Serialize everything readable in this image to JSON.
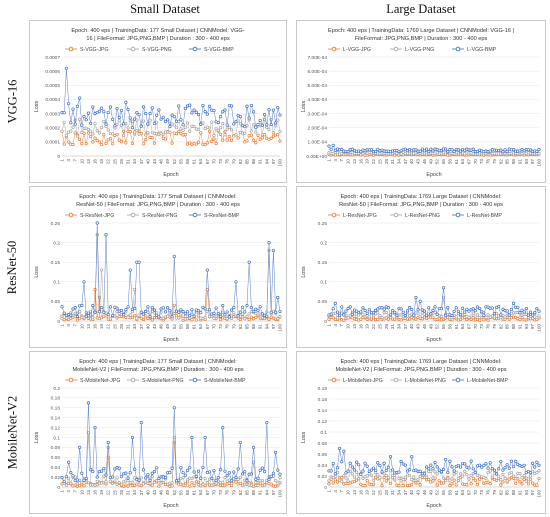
{
  "columns": [
    "Small Dataset",
    "Large Dataset"
  ],
  "rows": [
    "VGG-16",
    "ResNet-50",
    "MobileNet-V2"
  ],
  "colors": {
    "jpg": "#ed7d31",
    "png": "#a5a5a5",
    "bmp": "#4472c4"
  },
  "chart_data": [
    {
      "type": "line",
      "title_lines": [
        "Epoch: 400 eps | TrainingData: 177 Small Dataset | CNNModel: VGG-",
        "16 | FileFormat: JPG,PNG,BMP | Duration : 300 - 400 eps"
      ],
      "xlabel": "Epoch",
      "ylabel": "Loss",
      "ylim": [
        0,
        0.0007
      ],
      "yticks": [
        "0",
        "0.0001",
        "0.0002",
        "0.0003",
        "0.0004",
        "0.0005",
        "0.0006",
        "0.0007"
      ],
      "xticks": [
        "1",
        "4",
        "7",
        "10",
        "13",
        "16",
        "19",
        "22",
        "25",
        "28",
        "31",
        "34",
        "37",
        "40",
        "43",
        "46",
        "49",
        "52",
        "55",
        "58",
        "61",
        "64",
        "67",
        "70",
        "73",
        "76",
        "79",
        "82",
        "85",
        "88",
        "91",
        "94",
        "97",
        "100"
      ],
      "series": [
        {
          "name": "S-VGG-JPG",
          "key": "jpg",
          "base": 0.00013,
          "amp": 5e-05,
          "spikes": []
        },
        {
          "name": "S-VGG-PNG",
          "key": "png",
          "base": 0.0002,
          "amp": 6e-05,
          "spikes": []
        },
        {
          "name": "S-VGG-BMP",
          "key": "bmp",
          "base": 0.00028,
          "amp": 8e-05,
          "spikes": [
            [
              3,
              0.00062
            ],
            [
              4,
              0.00037
            ],
            [
              9,
              0.00041
            ],
            [
              30,
              0.00038
            ]
          ]
        }
      ]
    },
    {
      "type": "line",
      "title_lines": [
        "Epoch: 400 eps | TrainingData: 1769 Large Dataset | CNNModel: VGG-16 |",
        "FileFormat: JPG,PNG,BMP | Duration : 300 - 400 eps"
      ],
      "xlabel": "Epoch",
      "ylabel": "Loss",
      "ylim": [
        0,
        0.0007
      ],
      "yticks": [
        "0.00E+00",
        "1.00E-04",
        "2.00E-04",
        "3.00E-04",
        "4.00E-04",
        "5.00E-04",
        "6.00E-04",
        "7.00E-04"
      ],
      "xticks": [
        "1",
        "4",
        "7",
        "10",
        "13",
        "16",
        "19",
        "22",
        "25",
        "28",
        "31",
        "34",
        "37",
        "40",
        "43",
        "46",
        "49",
        "52",
        "55",
        "58",
        "61",
        "64",
        "67",
        "70",
        "73",
        "76",
        "79",
        "82",
        "85",
        "88",
        "91",
        "94",
        "97",
        "100"
      ],
      "series": [
        {
          "name": "L-VGG-JPG",
          "key": "jpg",
          "base": 1e-05,
          "amp": 4e-06,
          "spikes": []
        },
        {
          "name": "L-VGG-PNG",
          "key": "png",
          "base": 2e-05,
          "amp": 6e-06,
          "spikes": []
        },
        {
          "name": "L-VGG-BMP",
          "key": "bmp",
          "base": 4e-05,
          "amp": 1e-05,
          "spikes": [
            [
              1,
              7e-05
            ],
            [
              3,
              7.5e-05
            ]
          ]
        }
      ]
    },
    {
      "type": "line",
      "title_lines": [
        "Epoch: 400 eps | TrainingData: 177 Small Dataset | CNNModel:",
        "ResNet-50 | FileFormat: JPG,PNG,BMP | Duration : 300 - 400 eps"
      ],
      "xlabel": "Epoch",
      "ylabel": "Loss",
      "ylim": [
        0,
        0.25
      ],
      "yticks": [
        "0",
        "0.05",
        "0.1",
        "0.15",
        "0.2",
        "0.25"
      ],
      "xticks": [
        "1",
        "4",
        "7",
        "10",
        "13",
        "16",
        "19",
        "22",
        "25",
        "28",
        "31",
        "34",
        "37",
        "40",
        "43",
        "46",
        "49",
        "52",
        "55",
        "58",
        "61",
        "64",
        "67",
        "70",
        "73",
        "76",
        "79",
        "82",
        "85",
        "88",
        "91",
        "94",
        "97",
        "100"
      ],
      "series": [
        {
          "name": "S-ResNet-JPG",
          "key": "jpg",
          "base": 0.008,
          "amp": 0.006,
          "spikes": [
            [
              16,
              0.08
            ],
            [
              18,
              0.06
            ],
            [
              52,
              0.04
            ],
            [
              67,
              0.08
            ]
          ]
        },
        {
          "name": "S-ResNet-PNG",
          "key": "png",
          "base": 0.015,
          "amp": 0.01,
          "spikes": [
            [
              17,
              0.22
            ],
            [
              19,
              0.13
            ],
            [
              34,
              0.08
            ],
            [
              95,
              0.18
            ]
          ]
        },
        {
          "name": "S-ResNet-BMP",
          "key": "bmp",
          "base": 0.025,
          "amp": 0.015,
          "spikes": [
            [
              11,
              0.1
            ],
            [
              17,
              0.26
            ],
            [
              21,
              0.22
            ],
            [
              32,
              0.13
            ],
            [
              35,
              0.15
            ],
            [
              36,
              0.15
            ],
            [
              52,
              0.165
            ],
            [
              67,
              0.13
            ],
            [
              80,
              0.1
            ],
            [
              86,
              0.15
            ],
            [
              95,
              0.2
            ],
            [
              97,
              0.18
            ],
            [
              99,
              0.06
            ]
          ]
        }
      ]
    },
    {
      "type": "line",
      "title_lines": [
        "Epoch: 400 eps | TrainingData: 1769 Large Dataset | CNNModel:",
        "ResNet-50 | FileFormat: JPG,PNG,BMP | Duration : 300 - 400 eps"
      ],
      "xlabel": "Epoch",
      "ylabel": "Loss",
      "ylim": [
        0,
        0.25
      ],
      "yticks": [
        "0",
        "0.05",
        "0.1",
        "0.15",
        "0.2",
        "0.25"
      ],
      "xticks": [
        "1",
        "4",
        "7",
        "10",
        "13",
        "16",
        "19",
        "22",
        "25",
        "28",
        "31",
        "34",
        "37",
        "40",
        "43",
        "46",
        "49",
        "52",
        "55",
        "58",
        "61",
        "64",
        "67",
        "70",
        "73",
        "76",
        "79",
        "82",
        "85",
        "88",
        "91",
        "94",
        "97",
        "100"
      ],
      "series": [
        {
          "name": "L-ResNet-JPG",
          "key": "jpg",
          "base": 0.006,
          "amp": 0.004,
          "spikes": []
        },
        {
          "name": "L-ResNet-PNG",
          "key": "png",
          "base": 0.015,
          "amp": 0.007,
          "spikes": [
            [
              55,
              0.06
            ]
          ]
        },
        {
          "name": "L-ResNet-BMP",
          "key": "bmp",
          "base": 0.025,
          "amp": 0.012,
          "spikes": [
            [
              4,
              0.045
            ],
            [
              42,
              0.06
            ],
            [
              44,
              0.05
            ],
            [
              55,
              0.085
            ],
            [
              88,
              0.045
            ]
          ]
        }
      ]
    },
    {
      "type": "line",
      "title_lines": [
        "Epoch: 400 eps | TrainingData: 177 Small Dataset | CNNModel:",
        "MobileNet-V2 | FileFormat: JPG,PNG,BMP | Duration : 300 - 400 eps"
      ],
      "xlabel": "Epoch",
      "ylabel": "Loss",
      "ylim": [
        0,
        0.2
      ],
      "yticks": [
        "0",
        "0.02",
        "0.04",
        "0.06",
        "0.08",
        "0.1",
        "0.12",
        "0.14",
        "0.16",
        "0.18",
        "0.2"
      ],
      "xticks": [
        "1",
        "4",
        "7",
        "10",
        "13",
        "16",
        "19",
        "22",
        "25",
        "28",
        "31",
        "34",
        "37",
        "40",
        "43",
        "46",
        "49",
        "52",
        "55",
        "58",
        "61",
        "64",
        "67",
        "70",
        "73",
        "76",
        "79",
        "82",
        "85",
        "88",
        "91",
        "94",
        "97",
        "100"
      ],
      "series": [
        {
          "name": "S-MobileNet-JPG",
          "key": "jpg",
          "base": 0.006,
          "amp": 0.005,
          "spikes": [
            [
              22,
              0.06
            ],
            [
              52,
              0.09
            ]
          ]
        },
        {
          "name": "S-MobileNet-PNG",
          "key": "png",
          "base": 0.012,
          "amp": 0.01,
          "spikes": [
            [
              13,
              0.11
            ],
            [
              22,
              0.08
            ],
            [
              52,
              0.1
            ],
            [
              88,
              0.05
            ]
          ]
        },
        {
          "name": "S-MobileNet-BMP",
          "key": "bmp",
          "base": 0.025,
          "amp": 0.015,
          "spikes": [
            [
              4,
              0.05
            ],
            [
              9,
              0.08
            ],
            [
              13,
              0.17
            ],
            [
              16,
              0.12
            ],
            [
              22,
              0.09
            ],
            [
              33,
              0.1
            ],
            [
              37,
              0.13
            ],
            [
              52,
              0.16
            ],
            [
              60,
              0.1
            ],
            [
              66,
              0.1
            ],
            [
              74,
              0.12
            ],
            [
              82,
              0.09
            ],
            [
              88,
              0.08
            ],
            [
              94,
              0.13
            ],
            [
              98,
              0.07
            ]
          ]
        }
      ]
    },
    {
      "type": "line",
      "title_lines": [
        "Epoch: 400 eps | TrainingData: 1769 Large Dataset | CNNModel:",
        "MobileNet-V2 | FileFormat: JPG,PNG,BMP | Duration : 300 - 400 eps"
      ],
      "xlabel": "Epoch",
      "ylabel": "Loss",
      "ylim": [
        0,
        0.18
      ],
      "yticks": [
        "0",
        "0.02",
        "0.04",
        "0.06",
        "0.08",
        "0.1",
        "0.12",
        "0.14",
        "0.16",
        "0.18"
      ],
      "xticks": [
        "1",
        "4",
        "7",
        "10",
        "13",
        "16",
        "19",
        "22",
        "25",
        "28",
        "31",
        "34",
        "37",
        "40",
        "43",
        "46",
        "49",
        "52",
        "55",
        "58",
        "61",
        "64",
        "67",
        "70",
        "73",
        "76",
        "79",
        "82",
        "85",
        "88",
        "91",
        "94",
        "97",
        "100"
      ],
      "series": [
        {
          "name": "L-MobileNet-JPG",
          "key": "jpg",
          "base": 0.01,
          "amp": 0.008,
          "spikes": []
        },
        {
          "name": "L-MobileNet-PNG",
          "key": "png",
          "base": 0.02,
          "amp": 0.01,
          "spikes": []
        },
        {
          "name": "L-MobileNet-BMP",
          "key": "bmp",
          "base": 0.035,
          "amp": 0.012,
          "spikes": [
            [
              6,
              0.07
            ],
            [
              8,
              0.065
            ],
            [
              30,
              0.055
            ],
            [
              40,
              0.055
            ],
            [
              56,
              0.05
            ],
            [
              99,
              0.045
            ]
          ]
        }
      ]
    }
  ]
}
